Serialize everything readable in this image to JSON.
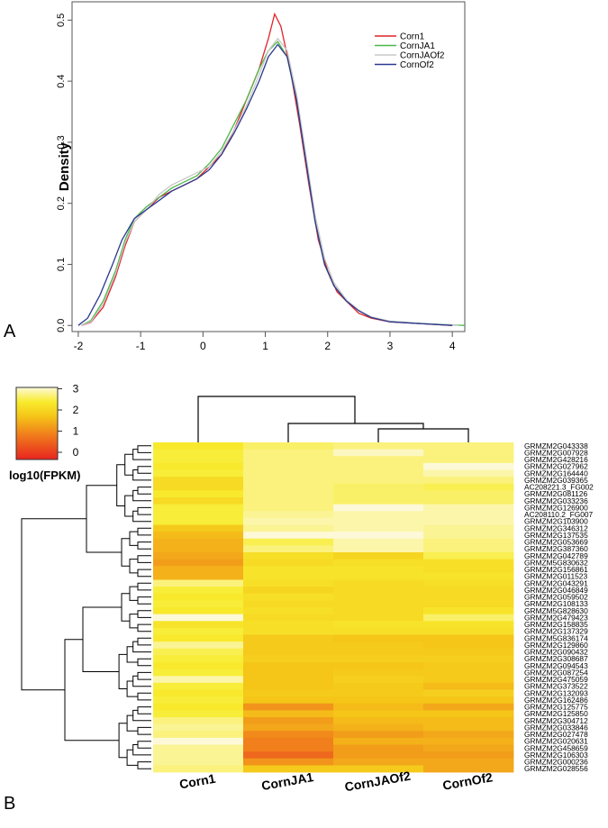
{
  "panel_labels": {
    "a": "A",
    "b": "B"
  },
  "chart_data": [
    {
      "type": "line",
      "ylabel": "Density",
      "xlabel": "",
      "xlim": [
        -2.1,
        4.2
      ],
      "ylim": [
        -0.01,
        0.53
      ],
      "x_ticks": [
        -2,
        -1,
        0,
        1,
        2,
        3,
        4
      ],
      "x_tick_labels": [
        "-2",
        "-1",
        "0",
        "1",
        "2",
        "3",
        "4"
      ],
      "y_ticks": [
        0.0,
        0.1,
        0.2,
        0.3,
        0.4,
        0.5
      ],
      "y_tick_labels": [
        "0.0",
        "0.1",
        "0.2",
        "0.3",
        "0.4",
        "0.5"
      ],
      "legend_position": "top-right",
      "series": [
        {
          "name": "Corn1",
          "color": "#e0242a",
          "points": [
            [
              -1.95,
              0.0
            ],
            [
              -1.8,
              0.005
            ],
            [
              -1.6,
              0.03
            ],
            [
              -1.4,
              0.08
            ],
            [
              -1.25,
              0.13
            ],
            [
              -1.1,
              0.17
            ],
            [
              -0.9,
              0.19
            ],
            [
              -0.7,
              0.21
            ],
            [
              -0.5,
              0.22
            ],
            [
              -0.3,
              0.23
            ],
            [
              -0.1,
              0.24
            ],
            [
              0.1,
              0.26
            ],
            [
              0.3,
              0.28
            ],
            [
              0.5,
              0.32
            ],
            [
              0.7,
              0.37
            ],
            [
              0.9,
              0.42
            ],
            [
              1.05,
              0.47
            ],
            [
              1.15,
              0.51
            ],
            [
              1.25,
              0.49
            ],
            [
              1.4,
              0.42
            ],
            [
              1.55,
              0.33
            ],
            [
              1.7,
              0.23
            ],
            [
              1.85,
              0.14
            ],
            [
              2.0,
              0.09
            ],
            [
              2.15,
              0.055
            ],
            [
              2.3,
              0.04
            ],
            [
              2.5,
              0.02
            ],
            [
              2.7,
              0.012
            ],
            [
              3.0,
              0.006
            ],
            [
              3.5,
              0.003
            ],
            [
              4.0,
              0.0
            ]
          ]
        },
        {
          "name": "CornJA1",
          "color": "#4db848",
          "points": [
            [
              -1.95,
              0.0
            ],
            [
              -1.8,
              0.008
            ],
            [
              -1.6,
              0.04
            ],
            [
              -1.4,
              0.09
            ],
            [
              -1.25,
              0.14
            ],
            [
              -1.1,
              0.175
            ],
            [
              -0.9,
              0.195
            ],
            [
              -0.7,
              0.21
            ],
            [
              -0.5,
              0.225
            ],
            [
              -0.3,
              0.235
            ],
            [
              -0.1,
              0.245
            ],
            [
              0.1,
              0.265
            ],
            [
              0.3,
              0.29
            ],
            [
              0.5,
              0.33
            ],
            [
              0.7,
              0.37
            ],
            [
              0.9,
              0.42
            ],
            [
              1.05,
              0.45
            ],
            [
              1.2,
              0.465
            ],
            [
              1.35,
              0.44
            ],
            [
              1.5,
              0.37
            ],
            [
              1.65,
              0.27
            ],
            [
              1.8,
              0.17
            ],
            [
              1.95,
              0.1
            ],
            [
              2.1,
              0.065
            ],
            [
              2.3,
              0.04
            ],
            [
              2.5,
              0.025
            ],
            [
              2.7,
              0.013
            ],
            [
              3.0,
              0.007
            ],
            [
              3.5,
              0.003
            ],
            [
              4.2,
              0.0
            ]
          ]
        },
        {
          "name": "CornJAOf2",
          "color": "#c8c8c8",
          "points": [
            [
              -1.95,
              0.0
            ],
            [
              -1.8,
              0.006
            ],
            [
              -1.6,
              0.035
            ],
            [
              -1.4,
              0.085
            ],
            [
              -1.25,
              0.135
            ],
            [
              -1.1,
              0.17
            ],
            [
              -0.9,
              0.19
            ],
            [
              -0.7,
              0.215
            ],
            [
              -0.5,
              0.23
            ],
            [
              -0.3,
              0.24
            ],
            [
              -0.1,
              0.25
            ],
            [
              0.1,
              0.26
            ],
            [
              0.3,
              0.285
            ],
            [
              0.5,
              0.32
            ],
            [
              0.7,
              0.36
            ],
            [
              0.9,
              0.41
            ],
            [
              1.05,
              0.45
            ],
            [
              1.2,
              0.47
            ],
            [
              1.35,
              0.45
            ],
            [
              1.5,
              0.38
            ],
            [
              1.65,
              0.28
            ],
            [
              1.8,
              0.18
            ],
            [
              1.95,
              0.11
            ],
            [
              2.1,
              0.07
            ],
            [
              2.3,
              0.042
            ],
            [
              2.5,
              0.025
            ],
            [
              2.7,
              0.014
            ],
            [
              3.0,
              0.007
            ],
            [
              3.5,
              0.003
            ],
            [
              4.1,
              0.0
            ]
          ]
        },
        {
          "name": "CornOf2",
          "color": "#2b3990",
          "points": [
            [
              -2.0,
              0.0
            ],
            [
              -1.85,
              0.012
            ],
            [
              -1.65,
              0.05
            ],
            [
              -1.45,
              0.1
            ],
            [
              -1.3,
              0.14
            ],
            [
              -1.1,
              0.175
            ],
            [
              -0.9,
              0.19
            ],
            [
              -0.7,
              0.205
            ],
            [
              -0.5,
              0.22
            ],
            [
              -0.3,
              0.23
            ],
            [
              -0.1,
              0.24
            ],
            [
              0.1,
              0.255
            ],
            [
              0.3,
              0.28
            ],
            [
              0.5,
              0.315
            ],
            [
              0.7,
              0.355
            ],
            [
              0.9,
              0.4
            ],
            [
              1.05,
              0.44
            ],
            [
              1.2,
              0.46
            ],
            [
              1.35,
              0.44
            ],
            [
              1.5,
              0.37
            ],
            [
              1.65,
              0.27
            ],
            [
              1.8,
              0.17
            ],
            [
              1.95,
              0.1
            ],
            [
              2.1,
              0.065
            ],
            [
              2.3,
              0.04
            ],
            [
              2.5,
              0.024
            ],
            [
              2.7,
              0.013
            ],
            [
              3.0,
              0.006
            ],
            [
              3.5,
              0.003
            ],
            [
              4.0,
              0.0
            ]
          ]
        }
      ]
    },
    {
      "type": "heatmap",
      "legend_title": "log10(FPKM)",
      "color_scale": {
        "min": 0,
        "max": 3,
        "tick_labels": [
          "0",
          "1",
          "2",
          "3"
        ],
        "stops": [
          "#e8241f",
          "#f07a1c",
          "#f5c518",
          "#f8ec2e",
          "#fdf9d8"
        ]
      },
      "columns": [
        "Corn1",
        "CornJA1",
        "CornJAOf2",
        "CornOf2"
      ],
      "rows": [
        "GRMZM2G043338",
        "GRMZM2G007928",
        "GRMZM2G428216",
        "GRMZM2G027962",
        "GRMZM2G164440",
        "GRMZM2G039365",
        "AC208221.3_FG002",
        "GRMZM2G081126",
        "GRMZM2G033236",
        "GRMZM2G126900",
        "AC208110.2_FG007",
        "GRMZM2G103900",
        "GRMZM2G346312",
        "GRMZM2G137535",
        "GRMZM2G053669",
        "GRMZM2G387360",
        "GRMZM2G042789",
        "GRMZM5G830632",
        "GRMZM2G156861",
        "GRMZM2G011523",
        "GRMZM2G043291",
        "GRMZM2G046849",
        "GRMZM2G059502",
        "GRMZM2G108133",
        "GRMZM5G828630",
        "GRMZM2G479423",
        "GRMZM2G158835",
        "GRMZM2G137329",
        "GRMZM5G836174",
        "GRMZM2G129860",
        "GRMZM2G090432",
        "GRMZM2G308687",
        "GRMZM2G094543",
        "GRMZM2G087254",
        "GRMZM2G475059",
        "GRMZM2G373522",
        "GRMZM2G132093",
        "GRMZM2G162486",
        "GRMZM2G125775",
        "GRMZM2G125850",
        "GRMZM2G304712",
        "GRMZM2G033846",
        "GRMZM2G027478",
        "GRMZM2G020631",
        "GRMZM2G458659",
        "GRMZM2G106303",
        "GRMZM2G000236",
        "GRMZM2G028556"
      ],
      "values": [
        [
          2.2,
          2.5,
          2.6,
          2.6
        ],
        [
          2.3,
          2.6,
          2.9,
          2.6
        ],
        [
          2.3,
          2.6,
          2.6,
          2.6
        ],
        [
          2.2,
          2.6,
          2.6,
          3.0
        ],
        [
          2.3,
          2.6,
          2.6,
          2.8
        ],
        [
          1.9,
          2.6,
          2.6,
          2.6
        ],
        [
          1.9,
          2.6,
          2.5,
          2.4
        ],
        [
          2.2,
          2.6,
          2.5,
          2.5
        ],
        [
          1.9,
          2.6,
          2.5,
          2.5
        ],
        [
          2.3,
          2.6,
          3.0,
          2.8
        ],
        [
          2.3,
          2.7,
          2.8,
          2.8
        ],
        [
          2.3,
          2.8,
          2.8,
          2.8
        ],
        [
          1.6,
          2.7,
          2.8,
          2.7
        ],
        [
          1.4,
          3.0,
          3.0,
          2.7
        ],
        [
          1.3,
          2.4,
          2.8,
          2.6
        ],
        [
          1.3,
          2.6,
          2.8,
          2.6
        ],
        [
          1.2,
          2.0,
          1.8,
          2.4
        ],
        [
          1.1,
          1.9,
          2.0,
          2.0
        ],
        [
          1.3,
          2.1,
          2.1,
          2.0
        ],
        [
          1.3,
          2.1,
          2.1,
          2.1
        ],
        [
          2.6,
          2.0,
          1.9,
          2.0
        ],
        [
          2.3,
          1.8,
          1.9,
          1.9
        ],
        [
          2.2,
          2.0,
          1.9,
          1.9
        ],
        [
          2.3,
          1.9,
          1.9,
          1.9
        ],
        [
          2.2,
          2.0,
          1.9,
          2.1
        ],
        [
          3.0,
          1.9,
          1.9,
          2.5
        ],
        [
          2.1,
          2.0,
          2.1,
          2.1
        ],
        [
          2.3,
          2.0,
          2.0,
          2.0
        ],
        [
          2.2,
          1.6,
          1.5,
          1.5
        ],
        [
          2.7,
          1.6,
          1.6,
          1.5
        ],
        [
          2.4,
          1.6,
          1.6,
          1.6
        ],
        [
          2.3,
          1.7,
          1.7,
          1.7
        ],
        [
          2.2,
          1.5,
          1.5,
          1.6
        ],
        [
          2.3,
          1.5,
          1.6,
          1.6
        ],
        [
          2.8,
          1.5,
          1.7,
          1.6
        ],
        [
          2.3,
          1.5,
          1.6,
          1.4
        ],
        [
          2.2,
          1.6,
          1.6,
          1.7
        ],
        [
          2.3,
          1.5,
          1.5,
          1.5
        ],
        [
          2.2,
          1.0,
          1.4,
          1.2
        ],
        [
          2.3,
          1.4,
          1.5,
          1.5
        ],
        [
          2.6,
          1.1,
          1.4,
          1.4
        ],
        [
          2.7,
          1.2,
          1.3,
          1.4
        ],
        [
          2.6,
          0.9,
          1.1,
          1.2
        ],
        [
          3.0,
          0.8,
          1.3,
          1.3
        ],
        [
          2.7,
          0.8,
          1.1,
          1.2
        ],
        [
          2.7,
          0.6,
          1.1,
          1.1
        ],
        [
          2.7,
          1.0,
          1.2,
          1.2
        ],
        [
          2.6,
          1.6,
          1.6,
          1.2
        ]
      ]
    }
  ]
}
